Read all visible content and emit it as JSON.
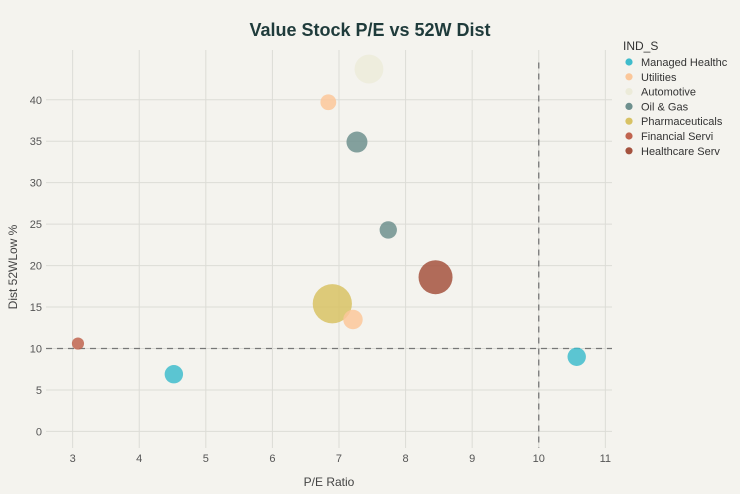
{
  "chart_data": {
    "type": "scatter",
    "title": "Value Stock P/E vs 52W Dist",
    "xlabel": "P/E Ratio",
    "ylabel": "Dist 52WLow %",
    "xlim": [
      2.6,
      11.1
    ],
    "ylim": [
      -2,
      46
    ],
    "xticks": [
      3,
      4,
      5,
      6,
      7,
      8,
      9,
      10,
      11
    ],
    "yticks": [
      0,
      5,
      10,
      15,
      20,
      25,
      30,
      35,
      40
    ],
    "grid": true,
    "reference_lines": {
      "x": 10,
      "y": 10
    },
    "legend": {
      "title": "IND_S",
      "placement": "right",
      "entries": [
        {
          "name": "Managed Healthc",
          "color": "#3fbccc"
        },
        {
          "name": "Utilities",
          "color": "#fbc79a"
        },
        {
          "name": "Automotive",
          "color": "#ecebd9"
        },
        {
          "name": "Oil & Gas",
          "color": "#6e908e"
        },
        {
          "name": "Pharmaceuticals",
          "color": "#d8c264"
        },
        {
          "name": "Financial Servi",
          "color": "#c0644f"
        },
        {
          "name": "Healthcare Serv",
          "color": "#a4523e"
        }
      ]
    },
    "points": [
      {
        "series": "Managed Healthc",
        "x": 4.52,
        "y": 6.9,
        "size": 2
      },
      {
        "series": "Managed Healthc",
        "x": 10.57,
        "y": 9.0,
        "size": 2
      },
      {
        "series": "Utilities",
        "x": 6.84,
        "y": 39.7,
        "size": 1.5
      },
      {
        "series": "Utilities",
        "x": 7.21,
        "y": 13.5,
        "size": 2.2
      },
      {
        "series": "Automotive",
        "x": 7.45,
        "y": 43.7,
        "size": 4
      },
      {
        "series": "Oil & Gas",
        "x": 7.27,
        "y": 34.9,
        "size": 2.5
      },
      {
        "series": "Oil & Gas",
        "x": 7.74,
        "y": 24.3,
        "size": 1.8
      },
      {
        "series": "Pharmaceuticals",
        "x": 6.9,
        "y": 15.4,
        "size": 6
      },
      {
        "series": "Financial Servi",
        "x": 3.08,
        "y": 10.6,
        "size": 0.8
      },
      {
        "series": "Healthcare Serv",
        "x": 8.45,
        "y": 18.6,
        "size": 5
      }
    ]
  }
}
